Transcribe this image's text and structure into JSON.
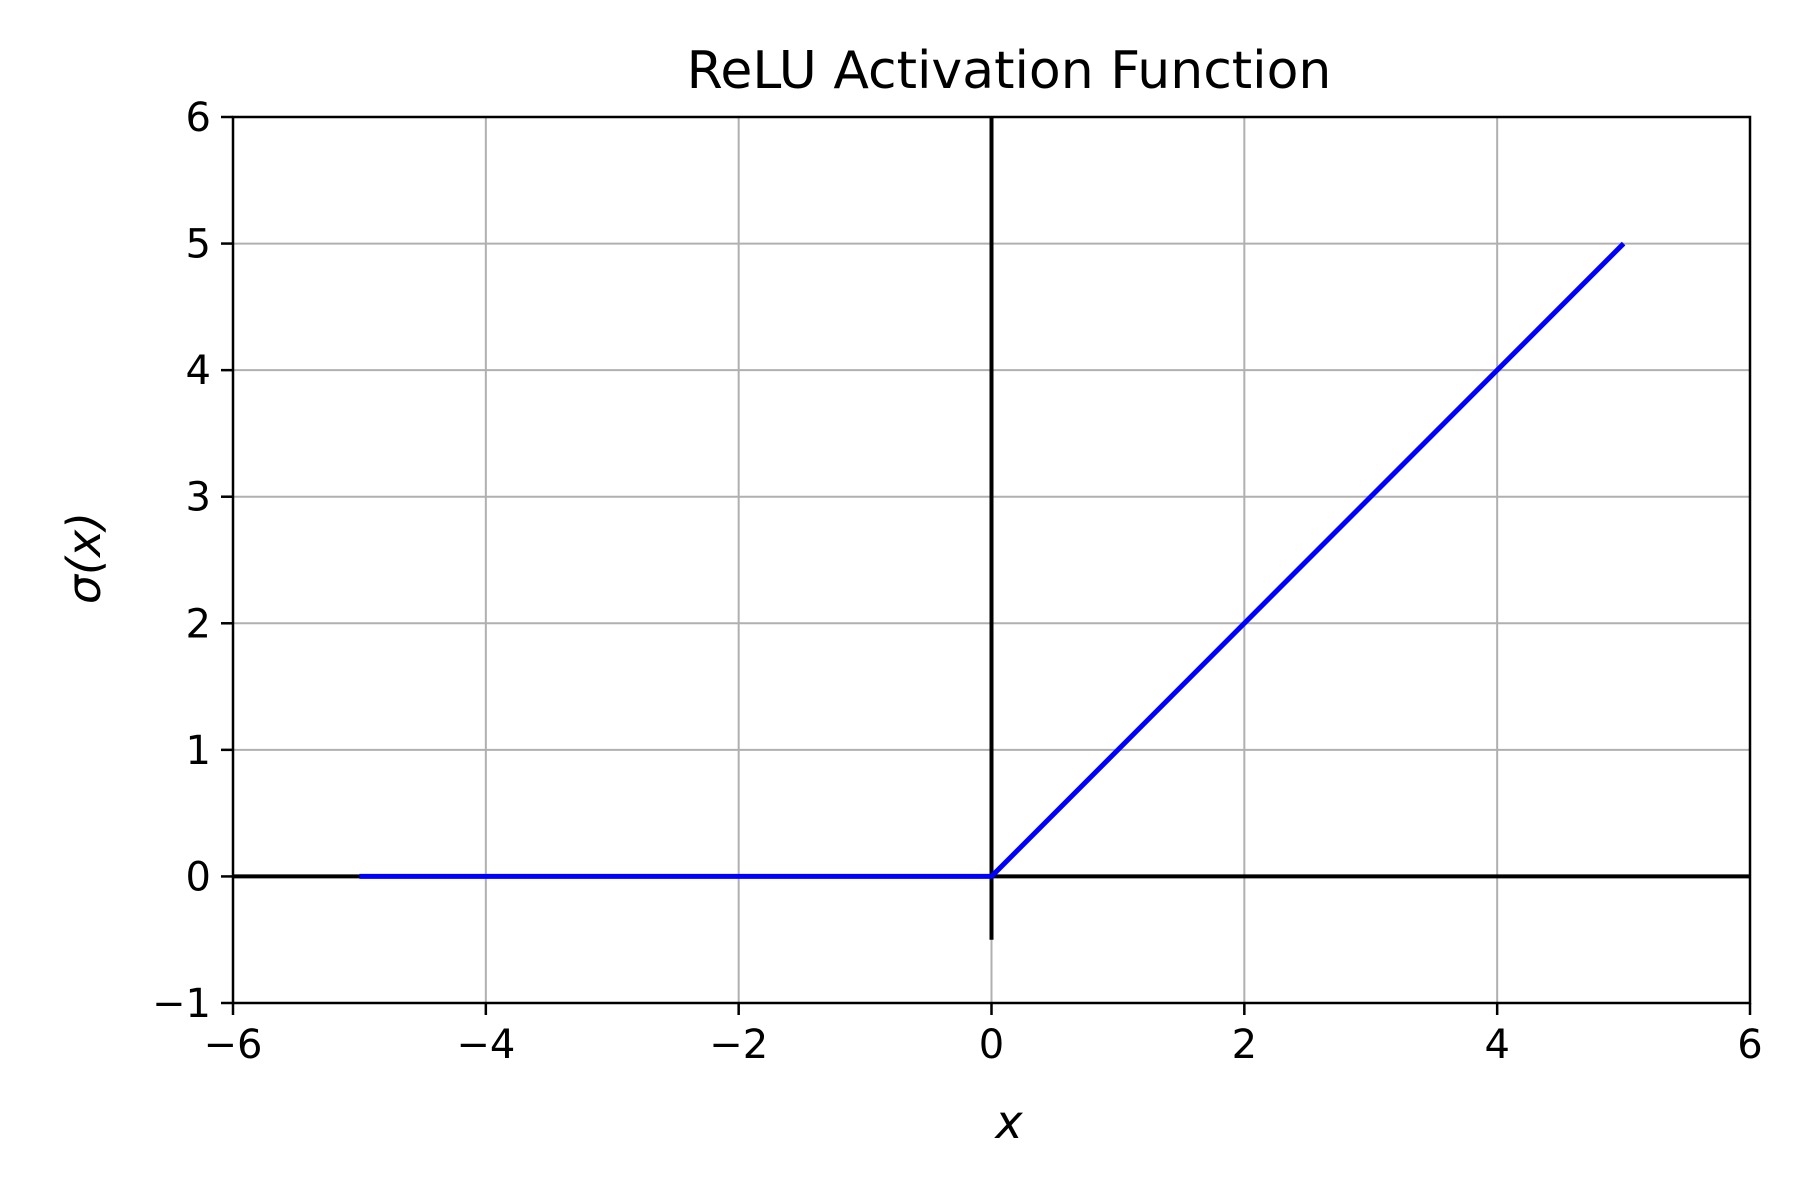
{
  "chart_data": {
    "type": "line",
    "title": "ReLU Activation Function",
    "xlabel": "x",
    "ylabel": "σ(x)",
    "xlim": [
      -6,
      6
    ],
    "ylim": [
      -1,
      6
    ],
    "xticks": [
      -6,
      -4,
      -2,
      0,
      2,
      4,
      6
    ],
    "yticks": [
      -1,
      0,
      1,
      2,
      3,
      4,
      5,
      6
    ],
    "xtick_labels": [
      "−6",
      "−4",
      "−2",
      "0",
      "2",
      "4",
      "6"
    ],
    "ytick_labels": [
      "−1",
      "0",
      "1",
      "2",
      "3",
      "4",
      "5",
      "6"
    ],
    "grid": true,
    "series": [
      {
        "x": [
          -5,
          0,
          5
        ],
        "y": [
          0,
          0,
          5
        ],
        "color": "#0000ff"
      }
    ],
    "reference_lines": {
      "horizontal": {
        "y": 0,
        "x_range": [
          -6,
          6
        ],
        "color": "#000000"
      },
      "vertical": {
        "x": 0,
        "y_range": [
          -0.5,
          6
        ],
        "color": "#000000"
      }
    },
    "grid_color": "#b0b0b0"
  }
}
